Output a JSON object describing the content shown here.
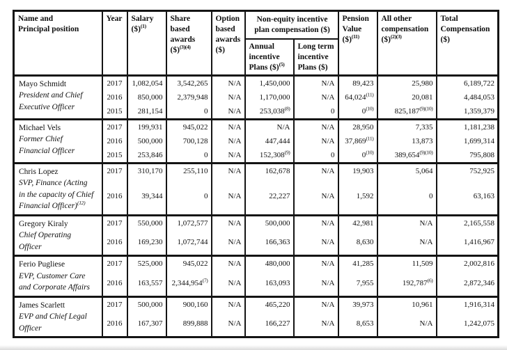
{
  "page": {
    "background": "#ffffff",
    "border_color": "#141414",
    "description": "Summary compensation table (scanned filing document)"
  },
  "table": {
    "header": {
      "name_position": "Name and\nPrincipal position",
      "year": "Year",
      "salary": "Salary\n($)^{(1)}",
      "share_based": "Share\nbased\nawards\n($)^{(3)(4)}",
      "option_based": "Option\nbased\nawards\n($)",
      "non_equity_group": "Non-equity incentive\nplan compensation ($)",
      "annual_incentive": "Annual\nincentive\nPlans ($)^{(5)}",
      "long_term_incentive": "Long term\nincentive\nPlans ($)",
      "pension": "Pension\nValue\n($)^{(11)}",
      "all_other": "All other\ncompensation\n($)^{(2)(3)}",
      "total": "Total\nCompensation\n($)"
    },
    "groups": [
      {
        "name": "Mayo Schmidt",
        "position": "President and Chief\nExecutive Officer",
        "rows": [
          {
            "year": "2017",
            "salary": "1,082,054",
            "share": "3,542,265",
            "option": "N/A",
            "annual": "1,450,000",
            "long_term": "N/A",
            "pension": "89,423",
            "other": "25,980",
            "total": "6,189,722"
          },
          {
            "year": "2016",
            "salary": "850,000",
            "share": "2,379,948",
            "option": "N/A",
            "annual": "1,170,000",
            "long_term": "N/A",
            "pension": "64,024^{(11)}",
            "other": "20,081",
            "total": "4,484,053"
          },
          {
            "year": "2015",
            "salary": "281,154",
            "share": "0",
            "option": "N/A",
            "annual": "253,038^{(8)}",
            "long_term": "0",
            "pension": "0^{(10)}",
            "other": "825,187^{(9)(10)}",
            "total": "1,359,379"
          }
        ]
      },
      {
        "name": "Michael Vels",
        "position": "Former Chief\nFinancial Officer",
        "rows": [
          {
            "year": "2017",
            "salary": "199,931",
            "share": "945,022",
            "option": "N/A",
            "annual": "N/A",
            "long_term": "N/A",
            "pension": "28,950",
            "other": "7,335",
            "total": "1,181,238"
          },
          {
            "year": "2016",
            "salary": "500,000",
            "share": "700,128",
            "option": "N/A",
            "annual": "447,444",
            "long_term": "N/A",
            "pension": "37,869^{(11)}",
            "other": "13,873",
            "total": "1,699,314"
          },
          {
            "year": "2015",
            "salary": "253,846",
            "share": "0",
            "option": "N/A",
            "annual": "152,308^{(9)}",
            "long_term": "0",
            "pension": "0^{(10)}",
            "other": "389,654^{(9)(10)}",
            "total": "795,808"
          }
        ]
      },
      {
        "name": "Chris Lopez",
        "position": "SVP, Finance (Acting\nin the capacity of Chief\nFinancial Officer)^{(12)}",
        "rows": [
          {
            "year": "2017",
            "salary": "310,170",
            "share": "255,110",
            "option": "N/A",
            "annual": "162,678",
            "long_term": "N/A",
            "pension": "19,903",
            "other": "5,064",
            "total": "752,925"
          },
          {
            "year": "2016",
            "salary": "39,344",
            "share": "0",
            "option": "N/A",
            "annual": "22,227",
            "long_term": "N/A",
            "pension": "1,592",
            "other": "0",
            "total": "63,163"
          }
        ]
      },
      {
        "name": "Gregory Kiraly",
        "position": "Chief Operating\nOfficer",
        "rows": [
          {
            "year": "2017",
            "salary": "550,000",
            "share": "1,072,577",
            "option": "N/A",
            "annual": "500,000",
            "long_term": "N/A",
            "pension": "42,981",
            "other": "N/A",
            "total": "2,165,558"
          },
          {
            "year": "2016",
            "salary": "169,230",
            "share": "1,072,744",
            "option": "N/A",
            "annual": "166,363",
            "long_term": "N/A",
            "pension": "8,630",
            "other": "N/A",
            "total": "1,416,967"
          }
        ]
      },
      {
        "name": "Ferio Pugliese",
        "position": "EVP, Customer Care\nand Corporate Affairs",
        "rows": [
          {
            "year": "2017",
            "salary": "525,000",
            "share": "945,022",
            "option": "N/A",
            "annual": "480,000",
            "long_term": "N/A",
            "pension": "41,285",
            "other": "11,509",
            "total": "2,002,816"
          },
          {
            "year": "2016",
            "salary": "163,557",
            "share": "2,344,954^{(7)}",
            "option": "N/A",
            "annual": "163,093",
            "long_term": "N/A",
            "pension": "7,955",
            "other": "192,787^{(6)}",
            "total": "2,872,346"
          }
        ]
      },
      {
        "name": "James Scarlett",
        "position": "EVP and Chief Legal\nOfficer",
        "rows": [
          {
            "year": "2017",
            "salary": "500,000",
            "share": "900,160",
            "option": "N/A",
            "annual": "465,220",
            "long_term": "N/A",
            "pension": "39,973",
            "other": "10,961",
            "total": "1,916,314"
          },
          {
            "year": "2016",
            "salary": "167,307",
            "share": "899,888",
            "option": "N/A",
            "annual": "166,227",
            "long_term": "N/A",
            "pension": "8,653",
            "other": "N/A",
            "total": "1,242,075"
          }
        ]
      }
    ]
  }
}
